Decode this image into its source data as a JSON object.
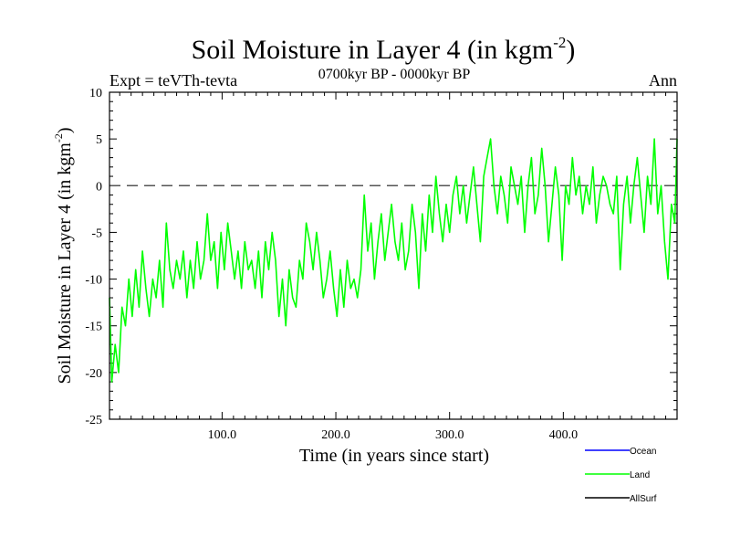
{
  "chart_data": {
    "type": "line",
    "title": "Soil Moisture in Layer 4 (in kgm",
    "title_sup": "-2",
    "title_suffix": ")",
    "subtitle": "0700kyr BP - 0000kyr BP",
    "left_label": "Expt = teVTh-tevta",
    "right_label": "Ann",
    "xlabel": "Time (in years since start)",
    "ylabel": "Soil Moisture in Layer 4 (in kgm",
    "ylabel_sup": "-2",
    "ylabel_suffix": ")",
    "xlim": [
      1,
      500
    ],
    "ylim": [
      -25,
      10
    ],
    "x_ticks": [
      {
        "value": 100,
        "label": "100.0"
      },
      {
        "value": 200,
        "label": "200.0"
      },
      {
        "value": 300,
        "label": "300.0"
      },
      {
        "value": 400,
        "label": "400.0"
      }
    ],
    "y_ticks": [
      {
        "value": 10,
        "label": "10"
      },
      {
        "value": 5,
        "label": "5"
      },
      {
        "value": 0,
        "label": "0"
      },
      {
        "value": -5,
        "label": "-5"
      },
      {
        "value": -10,
        "label": "-10"
      },
      {
        "value": -15,
        "label": "-15"
      },
      {
        "value": -20,
        "label": "-20"
      },
      {
        "value": -25,
        "label": "-25"
      }
    ],
    "reference_line": {
      "y": 0,
      "style": "dashed"
    },
    "legend": [
      {
        "name": "Ocean",
        "color": "#0000ff"
      },
      {
        "name": "Land",
        "color": "#00ff00"
      },
      {
        "name": "AllSurf",
        "color": "#000000"
      }
    ],
    "series": [
      {
        "name": "Land",
        "color": "#00ff00",
        "x": [
          1,
          3,
          6,
          9,
          12,
          15,
          18,
          21,
          24,
          27,
          30,
          33,
          36,
          39,
          42,
          45,
          48,
          51,
          54,
          57,
          60,
          63,
          66,
          69,
          72,
          75,
          78,
          81,
          84,
          87,
          90,
          93,
          96,
          99,
          102,
          105,
          108,
          111,
          114,
          117,
          120,
          123,
          126,
          129,
          132,
          135,
          138,
          141,
          144,
          147,
          150,
          153,
          156,
          159,
          162,
          165,
          168,
          171,
          174,
          177,
          180,
          183,
          186,
          189,
          192,
          195,
          198,
          201,
          204,
          207,
          210,
          213,
          216,
          219,
          222,
          225,
          228,
          231,
          234,
          237,
          240,
          243,
          246,
          249,
          252,
          255,
          258,
          261,
          264,
          267,
          270,
          273,
          276,
          279,
          282,
          285,
          288,
          291,
          294,
          297,
          300,
          303,
          306,
          309,
          312,
          315,
          318,
          321,
          324,
          327,
          330,
          333,
          336,
          339,
          342,
          345,
          348,
          351,
          354,
          357,
          360,
          363,
          366,
          369,
          372,
          375,
          378,
          381,
          384,
          387,
          390,
          393,
          396,
          399,
          402,
          405,
          408,
          411,
          414,
          417,
          420,
          423,
          426,
          429,
          432,
          435,
          438,
          441,
          444,
          447,
          450,
          453,
          456,
          459,
          462,
          465,
          468,
          471,
          474,
          477,
          480,
          483,
          486,
          489,
          492,
          495,
          498,
          500
        ],
        "values": [
          -12,
          -21,
          -17,
          -20,
          -13,
          -15,
          -10,
          -14,
          -9,
          -13,
          -7,
          -11,
          -14,
          -10,
          -12,
          -8,
          -13,
          -4,
          -9,
          -11,
          -8,
          -10,
          -7,
          -12,
          -8,
          -11,
          -6,
          -10,
          -8,
          -3,
          -8,
          -6,
          -11,
          -5,
          -9,
          -4,
          -7,
          -10,
          -7,
          -11,
          -6,
          -9,
          -8,
          -11,
          -7,
          -12,
          -6,
          -9,
          -5,
          -8,
          -14,
          -10,
          -15,
          -9,
          -12,
          -13,
          -8,
          -10,
          -4,
          -6,
          -9,
          -5,
          -8,
          -12,
          -10,
          -7,
          -11,
          -14,
          -9,
          -13,
          -8,
          -11,
          -10,
          -12,
          -9,
          -1,
          -7,
          -4,
          -10,
          -6,
          -3,
          -8,
          -5,
          -2,
          -6,
          -8,
          -4,
          -9,
          -7,
          -2,
          -5,
          -11,
          -3,
          -7,
          -1,
          -5,
          1,
          -3,
          -6,
          -2,
          -5,
          -1,
          1,
          -3,
          0,
          -4,
          -1,
          2,
          -2,
          -6,
          1,
          3,
          5,
          0,
          -3,
          1,
          -1,
          -4,
          2,
          0,
          -2,
          1,
          -5,
          0,
          3,
          -3,
          -1,
          4,
          0,
          -6,
          -2,
          2,
          -1,
          -8,
          0,
          -2,
          3,
          -1,
          1,
          -3,
          0,
          -2,
          2,
          -4,
          -1,
          1,
          0,
          -2,
          -3,
          1,
          -9,
          -2,
          1,
          -4,
          0,
          3,
          -1,
          -5,
          1,
          -2,
          5,
          -3,
          0,
          -6,
          -10,
          -2,
          -4,
          5
        ]
      }
    ]
  }
}
